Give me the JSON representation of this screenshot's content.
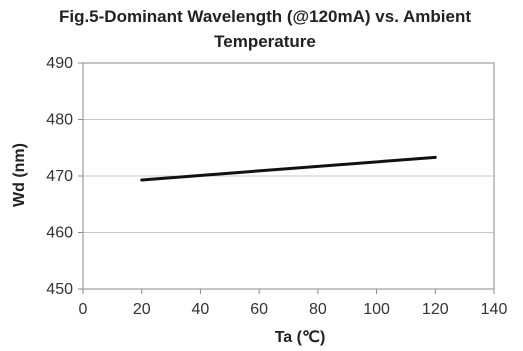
{
  "chart_data": {
    "type": "line",
    "title_line1": "Fig.5-Dominant Wavelength (@120mA) vs. Ambient",
    "title_line2": "Temperature",
    "xlabel": "Ta (℃)",
    "ylabel": "Wd (nm)",
    "xlim": [
      0,
      140
    ],
    "ylim": [
      450,
      490
    ],
    "x_ticks": [
      "0",
      "20",
      "40",
      "60",
      "80",
      "100",
      "120",
      "140"
    ],
    "y_ticks": [
      "450",
      "460",
      "470",
      "480",
      "490"
    ],
    "grid": true,
    "legend": "none",
    "colors": {
      "line": "#111111",
      "grid": "#c8c8c8",
      "frame": "#8a8a8a"
    },
    "series": [
      {
        "x": [
          20,
          120
        ],
        "y": [
          469.3,
          473.3
        ]
      }
    ]
  }
}
